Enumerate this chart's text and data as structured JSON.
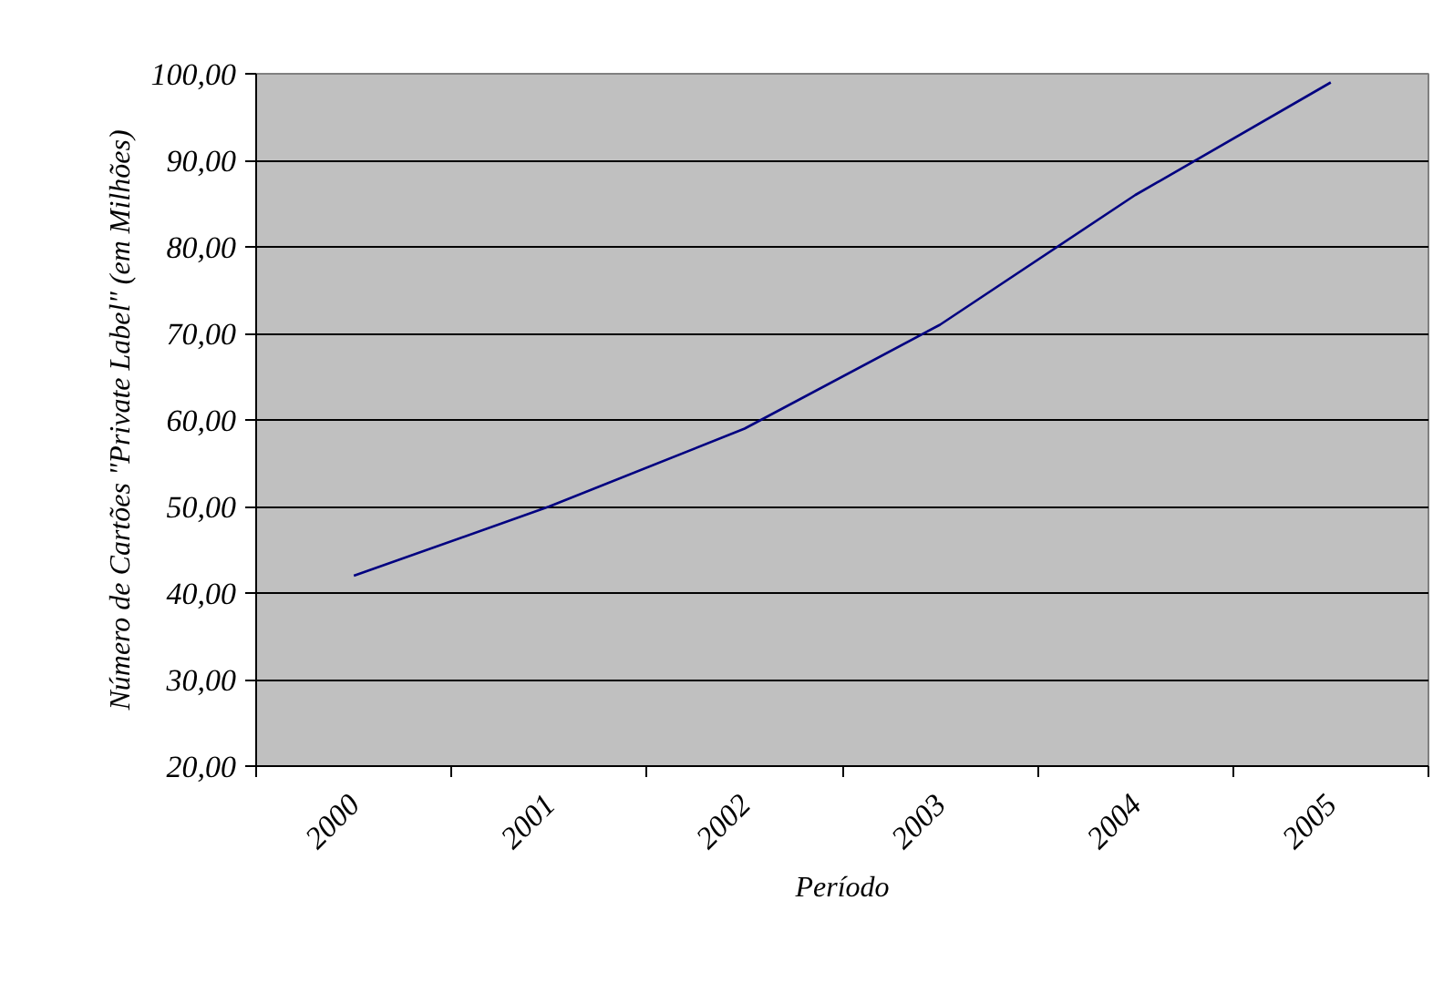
{
  "chart_data": {
    "type": "line",
    "xlabel": "Período",
    "ylabel": "Número de Cartões \"Private Label\" (em Milhões)",
    "categories": [
      "2000",
      "2001",
      "2002",
      "2003",
      "2004",
      "2005"
    ],
    "series": [
      {
        "color": "#000080",
        "values": [
          42,
          50,
          59,
          71,
          86,
          99
        ]
      }
    ],
    "ylim": [
      20,
      100
    ],
    "yticks": [
      {
        "value": 20,
        "label": "20,00"
      },
      {
        "value": 30,
        "label": "30,00"
      },
      {
        "value": 40,
        "label": "40,00"
      },
      {
        "value": 50,
        "label": "50,00"
      },
      {
        "value": 60,
        "label": "60,00"
      },
      {
        "value": 70,
        "label": "70,00"
      },
      {
        "value": 80,
        "label": "80,00"
      },
      {
        "value": 90,
        "label": "90,00"
      },
      {
        "value": 100,
        "label": "100,00"
      }
    ],
    "grid": "y",
    "line_style": "solid"
  }
}
